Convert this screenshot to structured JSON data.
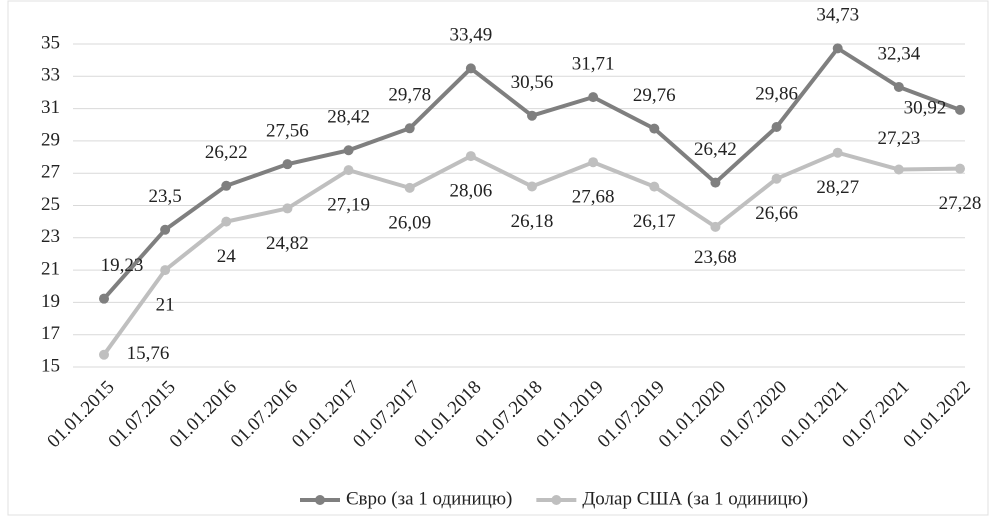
{
  "chart_data": {
    "type": "line",
    "categories": [
      "01.01.2015",
      "01.07.2015",
      "01.01.2016",
      "01.07.2016",
      "01.01.2017",
      "01.07.2017",
      "01.01.2018",
      "01.07.2018",
      "01.01.2019",
      "01.07.2019",
      "01.01.2020",
      "01.07.2020",
      "01.01.2021",
      "01.07.2021",
      "01.01.2022"
    ],
    "series": [
      {
        "name": "Євро (за 1 одиницю)",
        "color": "#7f7f7f",
        "values": [
          19.23,
          23.5,
          26.22,
          27.56,
          28.42,
          29.78,
          33.49,
          30.56,
          31.71,
          29.76,
          26.42,
          29.86,
          34.73,
          32.34,
          30.92
        ],
        "value_labels": [
          "19,23",
          "23,5",
          "26,22",
          "27,56",
          "28,42",
          "29,78",
          "33,49",
          "30,56",
          "31,71",
          "29,76",
          "26,42",
          "29,86",
          "34,73",
          "32,34",
          "30,92"
        ]
      },
      {
        "name": "Долар США (за 1 одиницю)",
        "color": "#bfbfbf",
        "values": [
          15.76,
          21,
          24,
          24.82,
          27.19,
          26.09,
          28.06,
          26.18,
          27.68,
          26.17,
          23.68,
          26.66,
          28.27,
          27.23,
          27.28
        ],
        "value_labels": [
          "15,76",
          "21",
          "24",
          "24,82",
          "27,19",
          "26,09",
          "28,06",
          "26,18",
          "27,68",
          "26,17",
          "23,68",
          "26,66",
          "28,27",
          "27,23",
          "27,28"
        ]
      }
    ],
    "ylim": [
      15,
      35
    ],
    "yticks": [
      15,
      17,
      19,
      21,
      23,
      25,
      27,
      29,
      31,
      33,
      35
    ],
    "grid": true,
    "legend": "bottom"
  }
}
